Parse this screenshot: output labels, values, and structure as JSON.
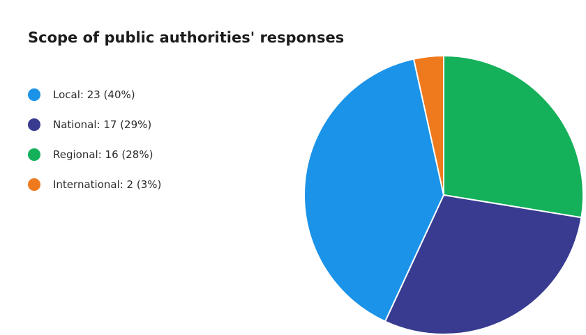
{
  "chart_data": {
    "type": "pie",
    "title": "Scope of public authorities' responses",
    "slices": [
      {
        "label": "Local",
        "value": 23,
        "percent": 40,
        "color": "#1a93e8",
        "legend_text": "Local: 23 (40%)"
      },
      {
        "label": "National",
        "value": 17,
        "percent": 29,
        "color": "#383b90",
        "legend_text": "National: 17 (29%)"
      },
      {
        "label": "Regional",
        "value": 16,
        "percent": 28,
        "color": "#14b05a",
        "legend_text": "Regional: 16 (28%)"
      },
      {
        "label": "International",
        "value": 2,
        "percent": 3,
        "color": "#ef7a1e",
        "legend_text": "International: 2 (3%)"
      }
    ],
    "legend_placement": "left",
    "slice_order_clockwise_from_top": [
      "Regional",
      "National",
      "Local",
      "International"
    ]
  }
}
